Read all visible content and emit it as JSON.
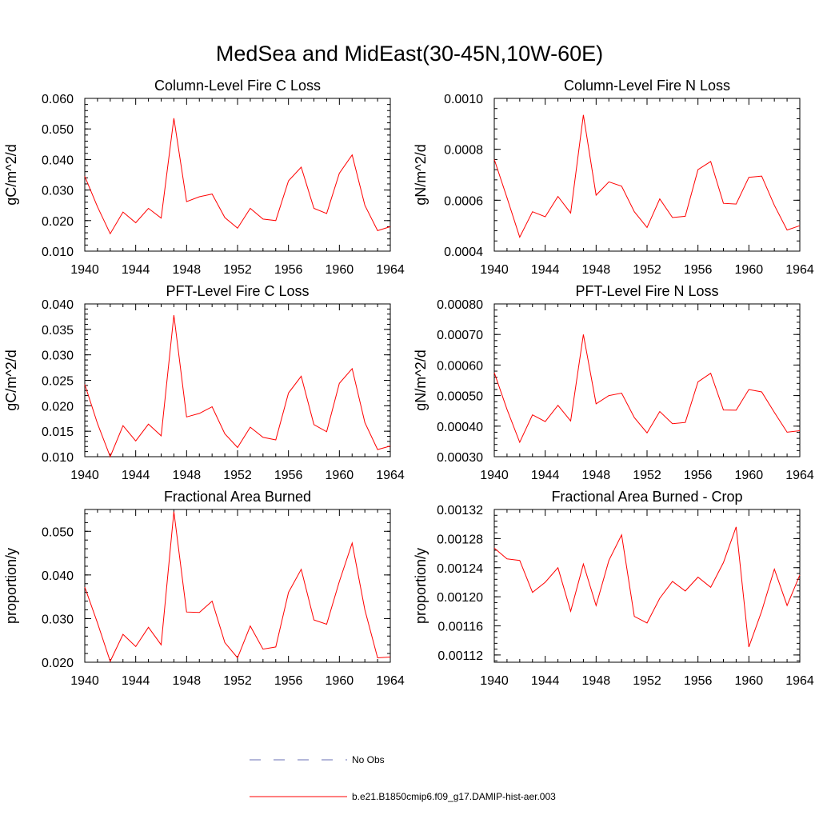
{
  "figure": {
    "title": "MedSea and MidEast(30-45N,10W-60E)"
  },
  "legend": {
    "obs_label": "No Obs",
    "obs_color": "#6a6fb5",
    "model_label": "b.e21.B1850cmip6.f09_g17.DAMIP-hist-aer.003",
    "model_color": "#ff0000"
  },
  "chart_data": [
    {
      "type": "line",
      "title": "Column-Level Fire C Loss",
      "ylabel": "gC/m^2/d",
      "xlim": [
        1940,
        1964
      ],
      "xticks": [
        "1940",
        "1944",
        "1948",
        "1952",
        "1956",
        "1960",
        "1964"
      ],
      "ylim": [
        0.01,
        0.06
      ],
      "yticks": [
        "0.010",
        "0.020",
        "0.030",
        "0.040",
        "0.050",
        "0.060"
      ],
      "x": [
        1940,
        1941,
        1942,
        1943,
        1944,
        1945,
        1946,
        1947,
        1948,
        1949,
        1950,
        1951,
        1952,
        1953,
        1954,
        1955,
        1956,
        1957,
        1958,
        1959,
        1960,
        1961,
        1962,
        1963,
        1964
      ],
      "series": [
        {
          "name": "b.e21.B1850cmip6.f09_g17.DAMIP-hist-aer.003",
          "values": [
            0.0345,
            0.0245,
            0.0157,
            0.0228,
            0.0193,
            0.024,
            0.0208,
            0.0535,
            0.0262,
            0.0278,
            0.0287,
            0.021,
            0.0175,
            0.024,
            0.0205,
            0.02,
            0.033,
            0.0375,
            0.024,
            0.0223,
            0.0355,
            0.0415,
            0.025,
            0.0167,
            0.018
          ]
        }
      ]
    },
    {
      "type": "line",
      "title": "Column-Level Fire N Loss",
      "ylabel": "gN/m^2/d",
      "xlim": [
        1940,
        1964
      ],
      "xticks": [
        "1940",
        "1944",
        "1948",
        "1952",
        "1956",
        "1960",
        "1964"
      ],
      "ylim": [
        0.0004,
        0.001
      ],
      "yticks": [
        "0.0004",
        "0.0006",
        "0.0008",
        "0.0010"
      ],
      "x": [
        1940,
        1941,
        1942,
        1943,
        1944,
        1945,
        1946,
        1947,
        1948,
        1949,
        1950,
        1951,
        1952,
        1953,
        1954,
        1955,
        1956,
        1957,
        1958,
        1959,
        1960,
        1961,
        1962,
        1963,
        1964
      ],
      "series": [
        {
          "name": "b.e21.B1850cmip6.f09_g17.DAMIP-hist-aer.003",
          "values": [
            0.00076,
            0.00061,
            0.000455,
            0.000555,
            0.000535,
            0.000615,
            0.00055,
            0.000935,
            0.00062,
            0.000672,
            0.000655,
            0.000555,
            0.000493,
            0.000605,
            0.000532,
            0.000537,
            0.00072,
            0.000752,
            0.000588,
            0.000585,
            0.00069,
            0.000695,
            0.00058,
            0.000483,
            0.0005
          ]
        }
      ]
    },
    {
      "type": "line",
      "title": "PFT-Level Fire C Loss",
      "ylabel": "gC/m^2/d",
      "xlim": [
        1940,
        1964
      ],
      "xticks": [
        "1940",
        "1944",
        "1948",
        "1952",
        "1956",
        "1960",
        "1964"
      ],
      "ylim": [
        0.01,
        0.04
      ],
      "yticks": [
        "0.010",
        "0.015",
        "0.020",
        "0.025",
        "0.030",
        "0.035",
        "0.040"
      ],
      "x": [
        1940,
        1941,
        1942,
        1943,
        1944,
        1945,
        1946,
        1947,
        1948,
        1949,
        1950,
        1951,
        1952,
        1953,
        1954,
        1955,
        1956,
        1957,
        1958,
        1959,
        1960,
        1961,
        1962,
        1963,
        1964
      ],
      "series": [
        {
          "name": "b.e21.B1850cmip6.f09_g17.DAMIP-hist-aer.003",
          "values": [
            0.0242,
            0.0165,
            0.01,
            0.0161,
            0.0131,
            0.0164,
            0.0141,
            0.0378,
            0.0178,
            0.0185,
            0.0198,
            0.0145,
            0.0118,
            0.0158,
            0.0138,
            0.0133,
            0.0225,
            0.0258,
            0.0163,
            0.0149,
            0.0244,
            0.0273,
            0.0167,
            0.0114,
            0.0121
          ]
        }
      ]
    },
    {
      "type": "line",
      "title": "PFT-Level Fire N Loss",
      "ylabel": "gN/m^2/d",
      "xlim": [
        1940,
        1964
      ],
      "xticks": [
        "1940",
        "1944",
        "1948",
        "1952",
        "1956",
        "1960",
        "1964"
      ],
      "ylim": [
        0.0003,
        0.0008
      ],
      "yticks": [
        "0.00030",
        "0.00040",
        "0.00050",
        "0.00060",
        "0.00070",
        "0.00080"
      ],
      "x": [
        1940,
        1941,
        1942,
        1943,
        1944,
        1945,
        1946,
        1947,
        1948,
        1949,
        1950,
        1951,
        1952,
        1953,
        1954,
        1955,
        1956,
        1957,
        1958,
        1959,
        1960,
        1961,
        1962,
        1963,
        1964
      ],
      "series": [
        {
          "name": "b.e21.B1850cmip6.f09_g17.DAMIP-hist-aer.003",
          "values": [
            0.000575,
            0.000455,
            0.000347,
            0.000437,
            0.000415,
            0.000468,
            0.000417,
            0.0007,
            0.000473,
            0.0005,
            0.000508,
            0.000428,
            0.000378,
            0.000448,
            0.000408,
            0.000412,
            0.000545,
            0.000573,
            0.000453,
            0.000452,
            0.00052,
            0.000512,
            0.000445,
            0.00038,
            0.000385
          ]
        }
      ]
    },
    {
      "type": "line",
      "title": "Fractional Area Burned",
      "ylabel": "proportion/y",
      "xlim": [
        1940,
        1964
      ],
      "xticks": [
        "1940",
        "1944",
        "1948",
        "1952",
        "1956",
        "1960",
        "1964"
      ],
      "ylim": [
        0.02,
        0.055
      ],
      "yticks": [
        "0.020",
        "0.030",
        "0.040",
        "0.050"
      ],
      "x": [
        1940,
        1941,
        1942,
        1943,
        1944,
        1945,
        1946,
        1947,
        1948,
        1949,
        1950,
        1951,
        1952,
        1953,
        1954,
        1955,
        1956,
        1957,
        1958,
        1959,
        1960,
        1961,
        1962,
        1963,
        1964
      ],
      "series": [
        {
          "name": "b.e21.B1850cmip6.f09_g17.DAMIP-hist-aer.003",
          "values": [
            0.0372,
            0.029,
            0.0202,
            0.0264,
            0.0236,
            0.028,
            0.024,
            0.0545,
            0.0315,
            0.0314,
            0.034,
            0.0245,
            0.021,
            0.0283,
            0.023,
            0.0235,
            0.036,
            0.0413,
            0.0297,
            0.0287,
            0.0385,
            0.0473,
            0.032,
            0.021,
            0.0212
          ]
        }
      ]
    },
    {
      "type": "line",
      "title": "Fractional Area Burned - Crop",
      "ylabel": "proportion/y",
      "xlim": [
        1940,
        1964
      ],
      "xticks": [
        "1940",
        "1944",
        "1948",
        "1952",
        "1956",
        "1960",
        "1964"
      ],
      "ylim": [
        0.00111,
        0.00132
      ],
      "yticks": [
        "0.00112",
        "0.00116",
        "0.00120",
        "0.00124",
        "0.00128",
        "0.00132"
      ],
      "x": [
        1940,
        1941,
        1942,
        1943,
        1944,
        1945,
        1946,
        1947,
        1948,
        1949,
        1950,
        1951,
        1952,
        1953,
        1954,
        1955,
        1956,
        1957,
        1958,
        1959,
        1960,
        1961,
        1962,
        1963,
        1964
      ],
      "series": [
        {
          "name": "b.e21.B1850cmip6.f09_g17.DAMIP-hist-aer.003",
          "values": [
            0.001267,
            0.001252,
            0.00125,
            0.001206,
            0.00122,
            0.00124,
            0.00118,
            0.001245,
            0.001188,
            0.00125,
            0.001285,
            0.001173,
            0.001164,
            0.001198,
            0.001221,
            0.001208,
            0.001227,
            0.001213,
            0.001247,
            0.001296,
            0.001131,
            0.00118,
            0.001238,
            0.001188,
            0.00123
          ]
        }
      ]
    }
  ]
}
